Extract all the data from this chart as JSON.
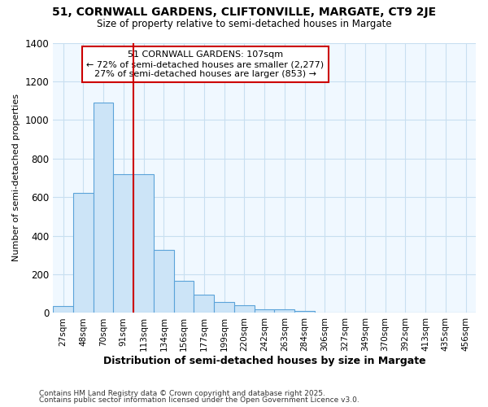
{
  "title1": "51, CORNWALL GARDENS, CLIFTONVILLE, MARGATE, CT9 2JE",
  "title2": "Size of property relative to semi-detached houses in Margate",
  "xlabel": "Distribution of semi-detached houses by size in Margate",
  "ylabel": "Number of semi-detached properties",
  "categories": [
    "27sqm",
    "48sqm",
    "70sqm",
    "91sqm",
    "113sqm",
    "134sqm",
    "156sqm",
    "177sqm",
    "199sqm",
    "220sqm",
    "242sqm",
    "263sqm",
    "284sqm",
    "306sqm",
    "327sqm",
    "349sqm",
    "370sqm",
    "392sqm",
    "413sqm",
    "435sqm",
    "456sqm"
  ],
  "values": [
    37,
    620,
    1090,
    720,
    720,
    328,
    168,
    93,
    58,
    38,
    20,
    20,
    12,
    0,
    0,
    0,
    0,
    0,
    0,
    0,
    0
  ],
  "bar_color": "#cce4f7",
  "bar_edge_color": "#5ba3d9",
  "annotation_line1": "51 CORNWALL GARDENS: 107sqm",
  "annotation_line2": "← 72% of semi-detached houses are smaller (2,277)",
  "annotation_line3": "27% of semi-detached houses are larger (853) →",
  "vline_x": 4.0,
  "vline_color": "#cc0000",
  "ylim": [
    0,
    1400
  ],
  "yticks": [
    0,
    200,
    400,
    600,
    800,
    1000,
    1200,
    1400
  ],
  "footer1": "Contains HM Land Registry data © Crown copyright and database right 2025.",
  "footer2": "Contains public sector information licensed under the Open Government Licence v3.0.",
  "bg_color": "#ffffff",
  "plot_bg_color": "#f0f8ff",
  "annotation_box_edge": "#cc0000",
  "grid_color": "#c8dff0"
}
